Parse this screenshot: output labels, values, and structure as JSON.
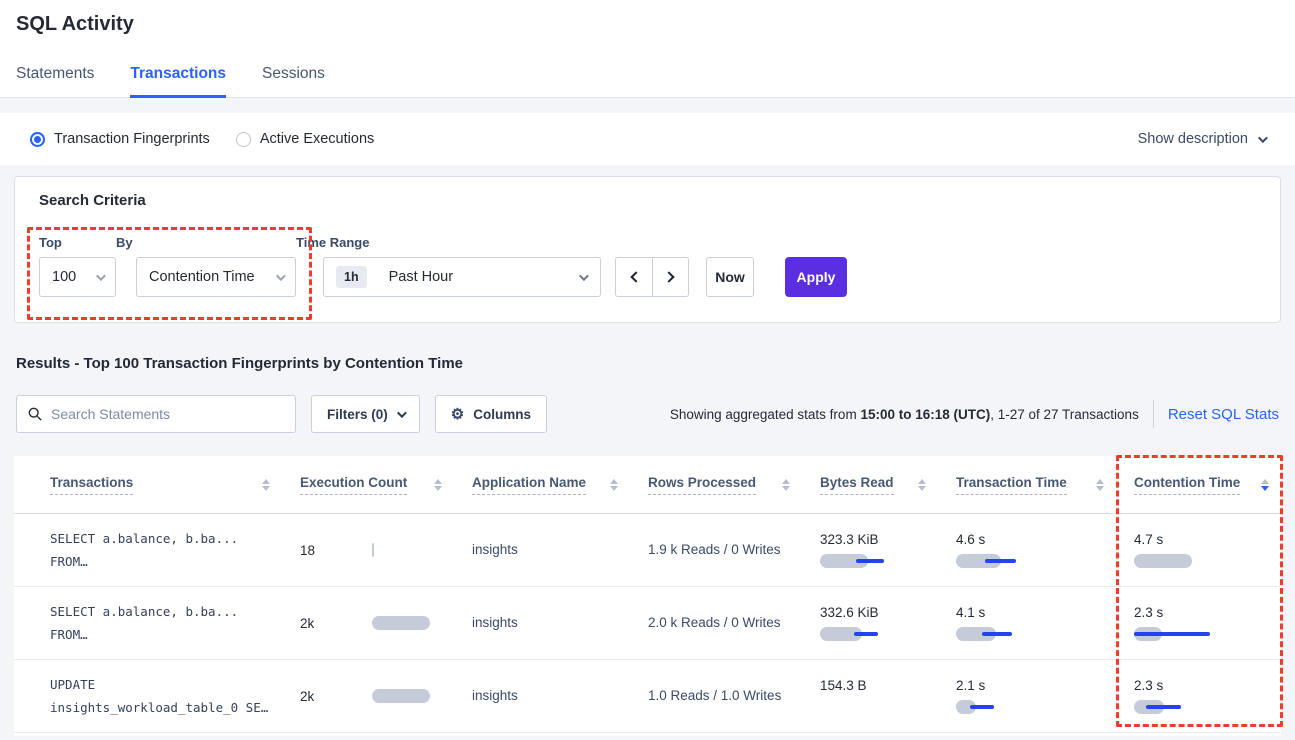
{
  "colors": {
    "accent_blue": "#2962ff",
    "purple": "#5b2fe1",
    "red_annotation": "#ee3c2d",
    "bar_gray": "#c5cbd9",
    "bar_blue": "#2342f0"
  },
  "page": {
    "title": "SQL Activity"
  },
  "tabs": [
    {
      "label": "Statements"
    },
    {
      "label": "Transactions"
    },
    {
      "label": "Sessions"
    }
  ],
  "view_toggle": {
    "options": [
      {
        "label": "Transaction Fingerprints",
        "selected": true
      },
      {
        "label": "Active Executions",
        "selected": false
      }
    ],
    "show_description": "Show description"
  },
  "search_criteria": {
    "title": "Search Criteria",
    "top": {
      "label": "Top",
      "value": "100"
    },
    "by": {
      "label": "By",
      "value": "Contention Time"
    },
    "time_range": {
      "label": "Time Range",
      "badge": "1h",
      "value": "Past Hour"
    },
    "now_label": "Now",
    "apply_label": "Apply"
  },
  "results": {
    "heading": "Results - Top 100 Transaction Fingerprints by Contention Time",
    "search_placeholder": "Search Statements",
    "filters_label": "Filters (0)",
    "columns_label": "Columns",
    "stats_prefix": "Showing aggregated stats from ",
    "stats_bold": "15:00 to 16:18 (UTC)",
    "stats_suffix": ", 1-27 of 27 Transactions",
    "reset_label": "Reset SQL Stats"
  },
  "table": {
    "columns": [
      {
        "label": "Transactions",
        "sort": "none"
      },
      {
        "label": "Execution Count",
        "sort": "none"
      },
      {
        "label": "Application Name",
        "sort": "none"
      },
      {
        "label": "Rows Processed",
        "sort": "none"
      },
      {
        "label": "Bytes Read",
        "sort": "none"
      },
      {
        "label": "Transaction Time",
        "sort": "none"
      },
      {
        "label": "Contention Time",
        "sort": "desc"
      }
    ],
    "rows": [
      {
        "statement_line1": "SELECT a.balance, b.ba...",
        "statement_line2": "FROM…",
        "execution_count": "18",
        "exec_bar": 2,
        "application": "insights",
        "rows_processed": "1.9 k Reads / 0 Writes",
        "bytes_read": {
          "value": "323.3 KiB",
          "bar": 48,
          "line": [
            36,
            64
          ]
        },
        "transaction_time": {
          "value": "4.6 s",
          "bar": 45,
          "line": [
            29,
            60
          ]
        },
        "contention_time": {
          "value": "4.7 s",
          "bar": 58,
          "line": null
        }
      },
      {
        "statement_line1": "SELECT a.balance, b.ba...",
        "statement_line2": "FROM…",
        "execution_count": "2k",
        "exec_bar": 58,
        "application": "insights",
        "rows_processed": "2.0 k Reads / 0 Writes",
        "bytes_read": {
          "value": "332.6 KiB",
          "bar": 42,
          "line": [
            34,
            58
          ]
        },
        "transaction_time": {
          "value": "4.1 s",
          "bar": 40,
          "line": [
            26,
            56
          ]
        },
        "contention_time": {
          "value": "2.3 s",
          "bar": 28,
          "line": [
            0,
            76
          ]
        }
      },
      {
        "statement_line1": "UPDATE",
        "statement_line2": "insights_workload_table_0 SE…",
        "execution_count": "2k",
        "exec_bar": 58,
        "application": "insights",
        "rows_processed": "1.0 Reads / 1.0 Writes",
        "bytes_read": {
          "value": "154.3 B",
          "bar": 0,
          "line": null
        },
        "transaction_time": {
          "value": "2.1 s",
          "bar": 20,
          "line": [
            14,
            38
          ]
        },
        "contention_time": {
          "value": "2.3 s",
          "bar": 30,
          "line": [
            12,
            47
          ]
        }
      }
    ]
  }
}
